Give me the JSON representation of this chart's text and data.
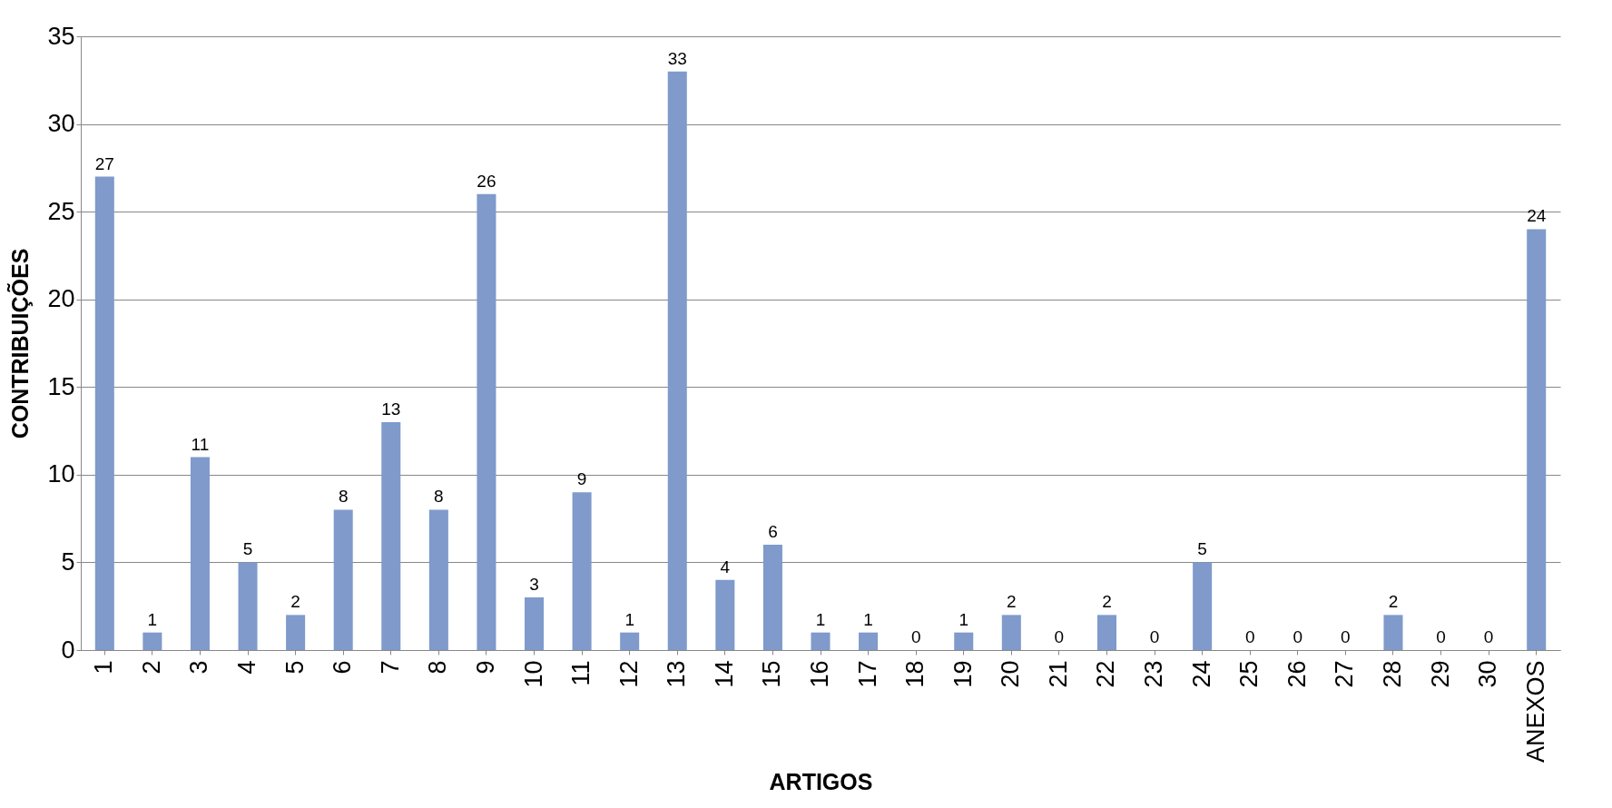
{
  "chart_data": {
    "type": "bar",
    "xlabel": "ARTIGOS",
    "ylabel": "CONTRIBUIÇÕES",
    "categories": [
      "1",
      "2",
      "3",
      "4",
      "5",
      "6",
      "7",
      "8",
      "9",
      "10",
      "11",
      "12",
      "13",
      "14",
      "15",
      "16",
      "17",
      "18",
      "19",
      "20",
      "21",
      "22",
      "23",
      "24",
      "25",
      "26",
      "27",
      "28",
      "29",
      "30",
      "ANEXOS"
    ],
    "values": [
      27,
      1,
      11,
      5,
      2,
      8,
      13,
      8,
      26,
      3,
      9,
      1,
      33,
      4,
      6,
      1,
      1,
      0,
      1,
      2,
      0,
      2,
      0,
      5,
      0,
      0,
      0,
      2,
      0,
      0,
      24
    ],
    "color": "#7f9acb",
    "ylim": [
      0,
      35
    ],
    "yticks": [
      0,
      5,
      10,
      15,
      20,
      25,
      30,
      35
    ],
    "grid": "y",
    "data_labels": true
  }
}
